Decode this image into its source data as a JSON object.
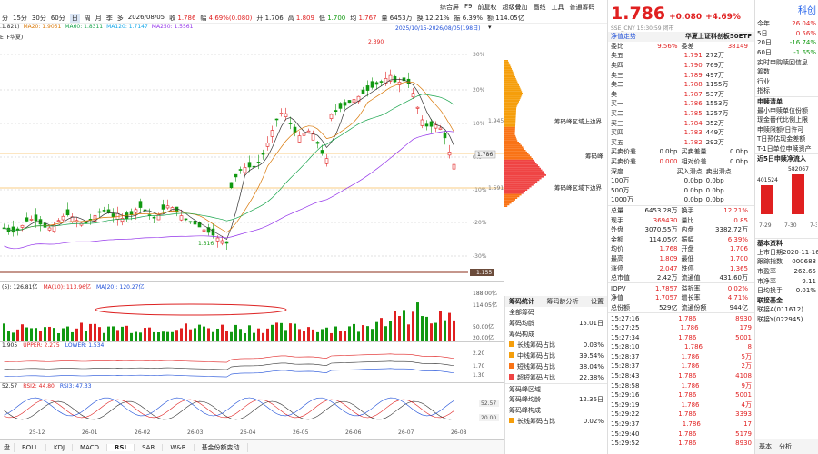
{
  "header": {
    "periods": [
      "分",
      "15分",
      "30分",
      "60分",
      "日",
      "周",
      "月",
      "季",
      "多"
    ],
    "active_period": "日",
    "date": "2026/08/05",
    "fields": [
      [
        "收",
        "1.786",
        "red"
      ],
      [
        "幅",
        "4.69%(0.080)",
        "red"
      ],
      [
        "开",
        "1.706",
        ""
      ],
      [
        "高",
        "1.809",
        "red"
      ],
      [
        "低",
        "1.700",
        "green"
      ],
      [
        "均",
        "1.767",
        "red"
      ],
      [
        "量",
        "6453万",
        ""
      ],
      [
        "换",
        "12.21%",
        ""
      ],
      [
        "振",
        "6.39%",
        ""
      ],
      [
        "额",
        "114.05亿",
        ""
      ]
    ],
    "menu": [
      "综合屏",
      "F9",
      "前复权",
      "超级叠加",
      "画线",
      "工具",
      "普通筹码"
    ],
    "ma_line": [
      [
        ".1.821)",
        "#333"
      ],
      [
        "MA20: 1.9051",
        "#d97706"
      ],
      [
        "MA60: 1.8311",
        "#16a34a"
      ],
      [
        "MA120: 1.7147",
        "#0ea5e9"
      ],
      [
        "MA250: 1.5561",
        "#9333ea"
      ]
    ],
    "name_tag": "ETF华夏)",
    "range": "2025/10/15-2026/08/05(198日)"
  },
  "main_chart": {
    "pct_labels": [
      "30%",
      "20%",
      "10%",
      "0%",
      "-10%",
      "-20%",
      "-30%"
    ],
    "price_now": "1.786",
    "price_bottom": "1.155",
    "left_edge": "1.316",
    "high_label": "2.390",
    "chip_top": "1.945",
    "chip_bot": "1.591"
  },
  "vol_panel": {
    "label1": "(5): 126.81亿",
    "label2": "MA(10): 113.96亿",
    "label3": "MA(20): 120.27亿",
    "ticks": [
      "188.00亿",
      "114.05亿",
      "50.00亿",
      "20.00亿"
    ]
  },
  "boll_panel": {
    "label1": "1.905",
    "label2": "UPPER: 2.275",
    "label3": "LOWER: 1.534",
    "ticks": [
      "2.20",
      "1.70",
      "1.30"
    ]
  },
  "rsi_panel": {
    "label1": "52.57",
    "label2": "RSI2: 44.80",
    "label3": "RSI3: 47.33",
    "ticks": [
      "52.57",
      "20.00"
    ]
  },
  "xaxis": [
    "25-12",
    "26-01",
    "26-02",
    "26-03",
    "26-04",
    "26-05",
    "26-06",
    "26-07",
    "26-08"
  ],
  "tabs": [
    "BOLL",
    "KDJ",
    "MACD",
    "RSI",
    "SAR",
    "W&R",
    "基金份额变动"
  ],
  "tab_first": "盘",
  "active_tab": "RSI",
  "chip": {
    "label_top": "筹码峰区域上边界",
    "label_mid": "筹码峰",
    "label_bot": "筹码峰区域下边界",
    "tabs": [
      "筹码统计",
      "筹码龄分析",
      "设置"
    ],
    "all": "全部筹码",
    "avg_age_label": "筹码均龄",
    "avg_age": "15.01日",
    "struct": "筹码构成",
    "rows": [
      [
        "长线筹码占比",
        "0.03%",
        "#f59e0b"
      ],
      [
        "中线筹码占比",
        "39.54%",
        "#f59e0b"
      ],
      [
        "短线筹码占比",
        "38.04%",
        "#f97316"
      ],
      [
        "超短筹码占比",
        "22.38%",
        "#ef4444"
      ]
    ],
    "peak_area": "筹码峰区域",
    "peak_age_label": "筹码峰均龄",
    "peak_age": "12.36日",
    "peak_struct": "筹码峰构成",
    "peak_row": [
      "长线筹码占比",
      "0.02%"
    ]
  },
  "quote": {
    "price": "1.786",
    "chg": "+0.080",
    "pct": "+4.69%",
    "code": "SSE_CNY 15:30:59 闭市",
    "name_label": "净值走势",
    "name": "华夏上证科创板50ETF",
    "weibi": [
      "委比",
      "9.56%",
      "委差",
      "38149"
    ],
    "asks": [
      [
        "卖五",
        "1.791",
        "272万"
      ],
      [
        "卖四",
        "1.790",
        "769万"
      ],
      [
        "卖三",
        "1.789",
        "497万"
      ],
      [
        "卖二",
        "1.788",
        "1155万"
      ],
      [
        "卖一",
        "1.787",
        "537万"
      ]
    ],
    "bids": [
      [
        "买一",
        "1.786",
        "1553万"
      ],
      [
        "买二",
        "1.785",
        "1257万"
      ],
      [
        "买三",
        "1.784",
        "352万"
      ],
      [
        "买四",
        "1.783",
        "449万"
      ],
      [
        "买五",
        "1.782",
        "292万"
      ]
    ],
    "bidask": [
      [
        "买卖价差",
        "0.0bp",
        "买卖差量",
        "0.0bp"
      ],
      [
        "买卖价差",
        "0.000",
        "相对价差",
        "0.0bp"
      ]
    ],
    "depth_head": [
      "深度",
      "买入滑点",
      "卖出滑点"
    ],
    "depth": [
      [
        "100万",
        "0.0bp",
        "0.0bp"
      ],
      [
        "500万",
        "0.0bp",
        "0.0bp"
      ],
      [
        "1000万",
        "0.0bp",
        "0.0bp"
      ]
    ],
    "stats": [
      [
        "总量",
        "6453.28万",
        "换手",
        "12.21%"
      ],
      [
        "现手",
        "369430",
        "量比",
        "0.85"
      ],
      [
        "外盘",
        "3070.55万",
        "内盘",
        "3382.72万"
      ],
      [
        "金额",
        "114.05亿",
        "振幅",
        "6.39%"
      ],
      [
        "均价",
        "1.768",
        "开盘",
        "1.706"
      ],
      [
        "最高",
        "1.809",
        "最低",
        "1.700"
      ],
      [
        "涨停",
        "2.047",
        "跌停",
        "1.365"
      ],
      [
        "总市值",
        "2.42万",
        "流通值",
        "431.60万"
      ]
    ],
    "iopv": [
      [
        "IOPV",
        "1.7857",
        "溢折率",
        "0.02%"
      ],
      [
        "净值",
        "1.7057",
        "增长率",
        "4.71%"
      ],
      [
        "总份额",
        "529亿",
        "流通份额",
        "944亿"
      ]
    ],
    "ticks": [
      [
        "15:27:16",
        "1.786",
        "8930"
      ],
      [
        "15:27:25",
        "1.786",
        "179"
      ],
      [
        "15:27:34",
        "1.786",
        "5001"
      ],
      [
        "15:28:10",
        "1.786",
        "8"
      ],
      [
        "15:28:37",
        "1.786",
        "5万"
      ],
      [
        "15:28:37",
        "1.786",
        "2万"
      ],
      [
        "15:28:43",
        "1.786",
        "4108"
      ],
      [
        "15:28:58",
        "1.786",
        "9万"
      ],
      [
        "15:29:16",
        "1.786",
        "5001"
      ],
      [
        "15:29:19",
        "1.786",
        "4万"
      ],
      [
        "15:29:22",
        "1.786",
        "3393"
      ],
      [
        "15:29:37",
        "1.786",
        "17"
      ],
      [
        "15:29:40",
        "1.786",
        "5179"
      ],
      [
        "15:29:52",
        "1.786",
        "8930"
      ]
    ]
  },
  "far": {
    "title": "科创",
    "perf": [
      [
        "今年",
        "26.04%",
        "red"
      ],
      [
        "5日",
        "0.56%",
        "red"
      ],
      [
        "20日",
        "-16.74%",
        "green"
      ],
      [
        "60日",
        "-1.65%",
        "green"
      ]
    ],
    "links": [
      "实时申购赎回信息",
      "筹数",
      "行业",
      "指标"
    ],
    "sub_head": "申赎清单",
    "sub_items": [
      "最小申赎单位份额",
      "现金替代比例上限",
      "申赎限额/日许可",
      "T日预估现金差额",
      "T-1日单位申赎资产"
    ],
    "flow_head": "近5日申赎净流入",
    "flow_vals": [
      "401524",
      "582067"
    ],
    "flow_dates": [
      "7-29",
      "7-30",
      "7-3"
    ],
    "base_head": "基本资料",
    "base": [
      [
        "上市日期",
        "2020-11-16"
      ],
      [
        "跟踪指数",
        "000688"
      ],
      [
        "市盈率",
        "262.65"
      ],
      [
        "市净率",
        "9.11"
      ],
      [
        "日均换手",
        "0.01%"
      ]
    ],
    "fund_head": "联接基金",
    "funds": [
      "联接A(011612)",
      "联接Y(022945)"
    ],
    "bottom_tabs": [
      "基本",
      "分析"
    ]
  }
}
